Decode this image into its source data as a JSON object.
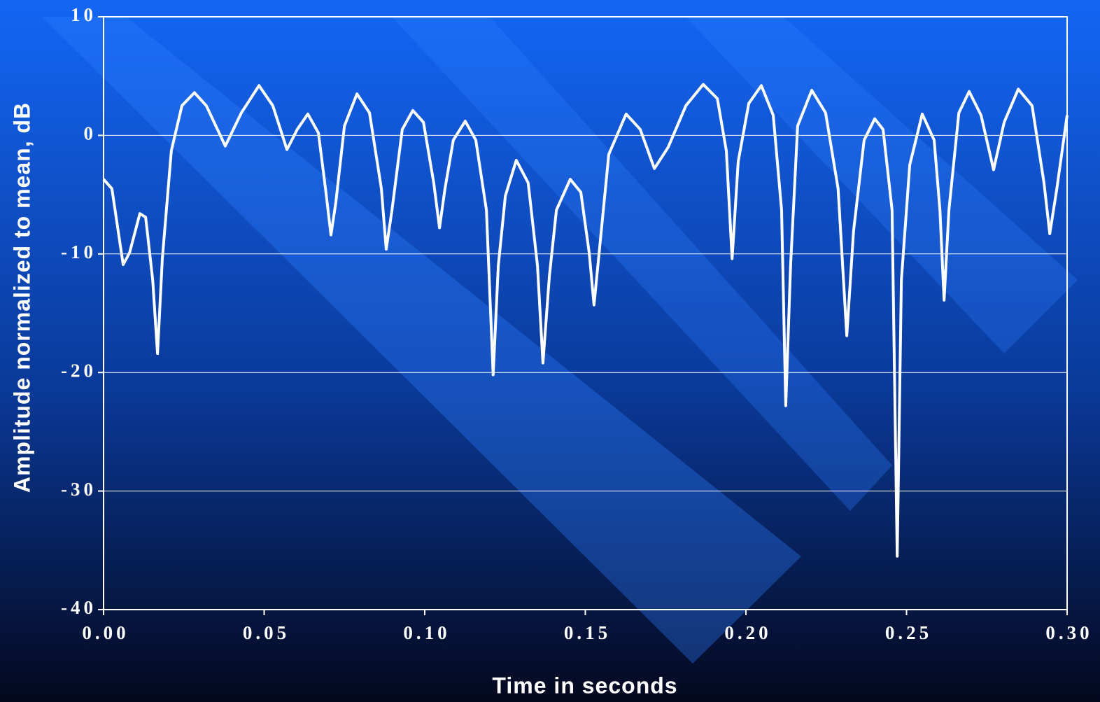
{
  "chart_data": {
    "type": "line",
    "x_label": "Time in seconds",
    "y_label": "Amplitude normalized to mean, dB",
    "xlim": [
      0,
      0.3
    ],
    "ylim": [
      -40,
      10
    ],
    "xticks": [
      {
        "value": 0,
        "label": "0.00"
      },
      0.05,
      {
        "value": 0.1,
        "label": "0.10"
      },
      0.15,
      {
        "value": 0.2,
        "label": "0.20"
      },
      0.25,
      {
        "value": 0.3,
        "label": "0.30"
      }
    ],
    "yticks": [
      -40,
      -30,
      -20,
      -10,
      0,
      10
    ],
    "grid": true,
    "line_color": "#ffffff",
    "x": [
      0,
      0.0026,
      0.0061,
      0.0081,
      0.0113,
      0.0131,
      0.0153,
      0.0168,
      0.0183,
      0.0211,
      0.0244,
      0.0283,
      0.032,
      0.0379,
      0.0429,
      0.0484,
      0.0527,
      0.0571,
      0.0603,
      0.0636,
      0.0669,
      0.0691,
      0.0708,
      0.0723,
      0.075,
      0.0789,
      0.0828,
      0.0865,
      0.088,
      0.0898,
      0.093,
      0.0963,
      0.0996,
      0.1028,
      0.1046,
      0.1063,
      0.1089,
      0.1126,
      0.1159,
      0.1192,
      0.1213,
      0.1229,
      0.1251,
      0.1285,
      0.1322,
      0.1351,
      0.1368,
      0.1388,
      0.141,
      0.1453,
      0.1486,
      0.1512,
      0.1527,
      0.1543,
      0.1573,
      0.1627,
      0.1671,
      0.1715,
      0.1758,
      0.1813,
      0.1867,
      0.1911,
      0.1939,
      0.1957,
      0.1976,
      0.2009,
      0.2048,
      0.2085,
      0.2111,
      0.2124,
      0.2139,
      0.2161,
      0.2205,
      0.2248,
      0.2287,
      0.2314,
      0.2335,
      0.2368,
      0.2401,
      0.2427,
      0.2455,
      0.2471,
      0.2484,
      0.251,
      0.2549,
      0.2586,
      0.2604,
      0.2617,
      0.2632,
      0.2663,
      0.2695,
      0.2732,
      0.2771,
      0.2804,
      0.2848,
      0.2891,
      0.2928,
      0.2946,
      0.2968,
      0.3
    ],
    "values": [
      -3.7,
      -4.5,
      -10.9,
      -9.9,
      -6.6,
      -6.9,
      -12.2,
      -18.4,
      -10.4,
      -1.3,
      2.5,
      3.6,
      2.5,
      -0.9,
      1.9,
      4.2,
      2.5,
      -1.2,
      0.5,
      1.8,
      0.2,
      -4.5,
      -8.4,
      -5.7,
      0.8,
      3.5,
      1.9,
      -4.5,
      -9.6,
      -6.3,
      0.5,
      2.1,
      1.1,
      -4.0,
      -7.8,
      -4.5,
      -0.4,
      1.2,
      -0.4,
      -6.3,
      -20.2,
      -11.0,
      -5.1,
      -2.1,
      -4.0,
      -11.0,
      -19.2,
      -11.9,
      -6.3,
      -3.7,
      -4.8,
      -9.9,
      -14.3,
      -9.9,
      -1.6,
      1.8,
      0.5,
      -2.8,
      -1.0,
      2.5,
      4.3,
      3.1,
      -1.3,
      -10.4,
      -2.2,
      2.7,
      4.2,
      1.7,
      -6.3,
      -22.8,
      -11.0,
      0.8,
      3.8,
      1.9,
      -4.5,
      -16.9,
      -8.1,
      -0.4,
      1.4,
      0.5,
      -6.3,
      -35.5,
      -12.2,
      -2.5,
      1.8,
      -0.4,
      -6.3,
      -13.9,
      -6.3,
      1.9,
      3.7,
      1.7,
      -2.9,
      1.1,
      3.9,
      2.5,
      -4.0,
      -8.3,
      -4.5,
      1.7
    ]
  }
}
